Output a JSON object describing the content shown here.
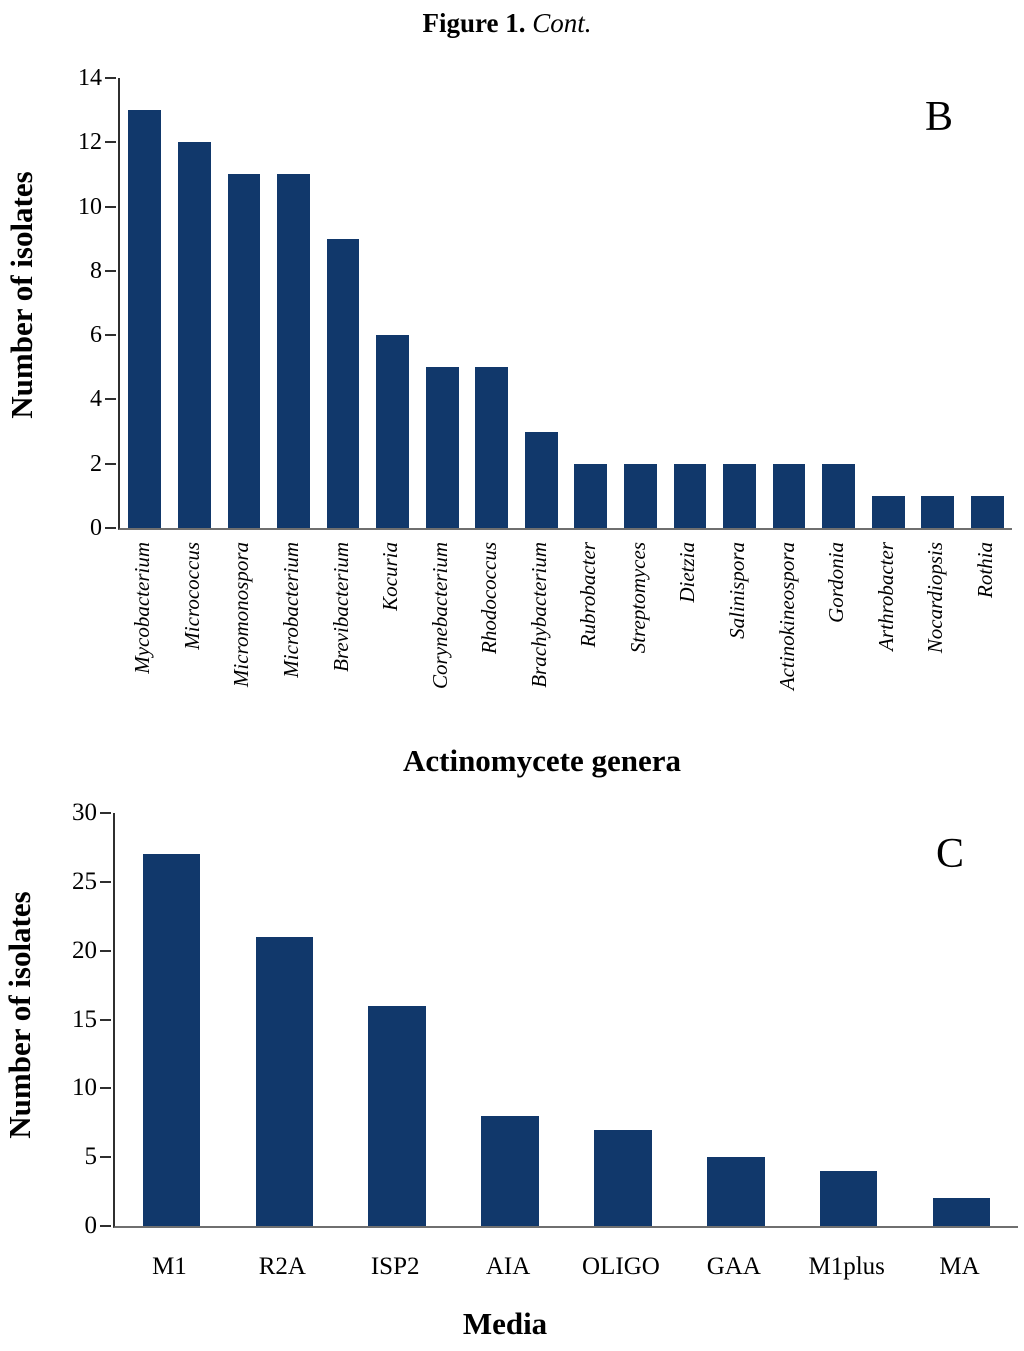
{
  "figure": {
    "title_prefix": "Figure 1.",
    "title_suffix": "Cont."
  },
  "colors": {
    "bar": "#11386b",
    "y_axis": "#2f2f2f",
    "x_axis": "#6f6f6f"
  },
  "chart_data": [
    {
      "type": "bar",
      "panel_label": "B",
      "title": "",
      "xlabel": "Actinomycete genera",
      "ylabel": "Number of isolates",
      "ylim": [
        0,
        14
      ],
      "yticks": [
        0,
        2,
        4,
        6,
        8,
        10,
        12,
        14
      ],
      "grid": "off",
      "legend": "none",
      "category_label_style": "rotated-italic",
      "categories": [
        "Mycobacterium",
        "Micrococcus",
        "Micromonospora",
        "Microbacterium",
        "Brevibacterium",
        "Kocuria",
        "Corynebacterium",
        "Rhodococcus",
        "Brachybacterium",
        "Rubrobacter",
        "Streptomyces",
        "Dietzia",
        "Salinispora",
        "Actinokineospora",
        "Gordonia",
        "Arthrobacter",
        "Nocardiopsis",
        "Rothia"
      ],
      "values": [
        13,
        12,
        11,
        11,
        9,
        6,
        5,
        5,
        3,
        2,
        2,
        2,
        2,
        2,
        2,
        1,
        1,
        1
      ]
    },
    {
      "type": "bar",
      "panel_label": "C",
      "title": "",
      "xlabel": "Media",
      "ylabel": "Number of isolates",
      "ylim": [
        0,
        30
      ],
      "yticks": [
        0,
        5,
        10,
        15,
        20,
        25,
        30
      ],
      "grid": "off",
      "legend": "none",
      "category_label_style": "horizontal",
      "categories": [
        "M1",
        "R2A",
        "ISP2",
        "AIA",
        "OLIGO",
        "GAA",
        "M1plus",
        "MA"
      ],
      "values": [
        27,
        21,
        16,
        8,
        7,
        5,
        4,
        2
      ]
    }
  ]
}
